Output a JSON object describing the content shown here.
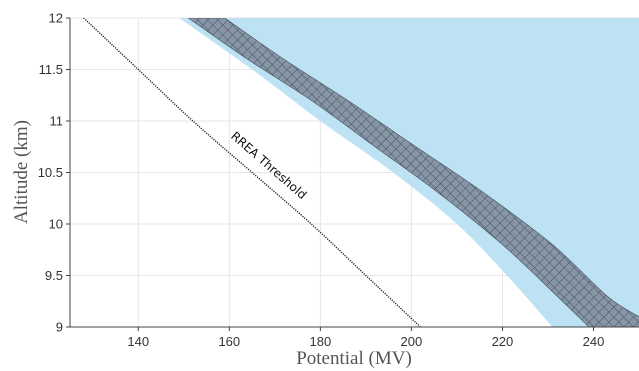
{
  "chart_data": {
    "type": "area",
    "xlabel": "Potential (MV)",
    "ylabel": "Altitude (km)",
    "xlim": [
      125,
      250
    ],
    "ylim": [
      9,
      12
    ],
    "xticks": [
      140,
      160,
      180,
      200,
      220,
      240
    ],
    "yticks": [
      9,
      9.5,
      10,
      10.5,
      11,
      11.5,
      12
    ],
    "grid": true,
    "colors": {
      "light_region": "#bde2f4",
      "band_fill": "#8796a6",
      "band_hatch": "#46505c",
      "threshold_line": "#222222",
      "grid": "#e6e6e6"
    },
    "regions": [
      {
        "kind": "light-blue-region",
        "left_boundary": [
          {
            "x": 149,
            "y": 12
          },
          {
            "x": 165,
            "y": 11.5
          },
          {
            "x": 180,
            "y": 11.0
          },
          {
            "x": 196,
            "y": 10.5
          },
          {
            "x": 210,
            "y": 10.0
          },
          {
            "x": 221,
            "y": 9.5
          },
          {
            "x": 231,
            "y": 9.0
          }
        ]
      },
      {
        "kind": "hatched-band",
        "left_boundary": [
          {
            "x": 151,
            "y": 12
          },
          {
            "x": 164,
            "y": 11.6
          },
          {
            "x": 178,
            "y": 11.2
          },
          {
            "x": 192,
            "y": 10.75
          },
          {
            "x": 206,
            "y": 10.3
          },
          {
            "x": 220,
            "y": 9.8
          },
          {
            "x": 232,
            "y": 9.3
          },
          {
            "x": 239,
            "y": 9.0
          }
        ],
        "right_boundary": [
          {
            "x": 159,
            "y": 12
          },
          {
            "x": 172,
            "y": 11.6
          },
          {
            "x": 186,
            "y": 11.2
          },
          {
            "x": 201,
            "y": 10.75
          },
          {
            "x": 216,
            "y": 10.3
          },
          {
            "x": 231,
            "y": 9.8
          },
          {
            "x": 243,
            "y": 9.3
          },
          {
            "x": 250,
            "y": 9.1
          }
        ]
      }
    ],
    "threshold_line": {
      "label": "RREA Threshold",
      "points": [
        {
          "x": 128,
          "y": 12
        },
        {
          "x": 140,
          "y": 11.5
        },
        {
          "x": 152,
          "y": 11.0
        },
        {
          "x": 165,
          "y": 10.5
        },
        {
          "x": 178,
          "y": 10.0
        },
        {
          "x": 190,
          "y": 9.5
        },
        {
          "x": 202,
          "y": 9.0
        }
      ]
    }
  }
}
